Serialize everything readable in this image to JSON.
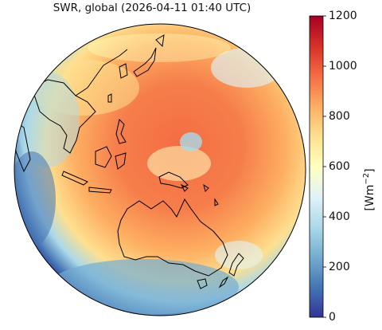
{
  "title": "SWR, global (2026-04-11 01:40 UTC)",
  "colorbar": {
    "label_base": "[Wm",
    "label_exp": "−2",
    "label_close": "]",
    "ticks": [
      "0",
      "200",
      "400",
      "600",
      "800",
      "1000",
      "1200"
    ],
    "range": [
      0,
      1200
    ],
    "colormap": [
      "#313695",
      "#4575b4",
      "#74add1",
      "#abd9e9",
      "#e0f3f8",
      "#ffffbf",
      "#fee090",
      "#fdae61",
      "#f46d43",
      "#d73027",
      "#a50026"
    ]
  },
  "map": {
    "projection": "orthographic full-disk",
    "regions": [
      "East Asia",
      "Southeast Asia",
      "Australia",
      "New Zealand",
      "Western Pacific"
    ]
  }
}
